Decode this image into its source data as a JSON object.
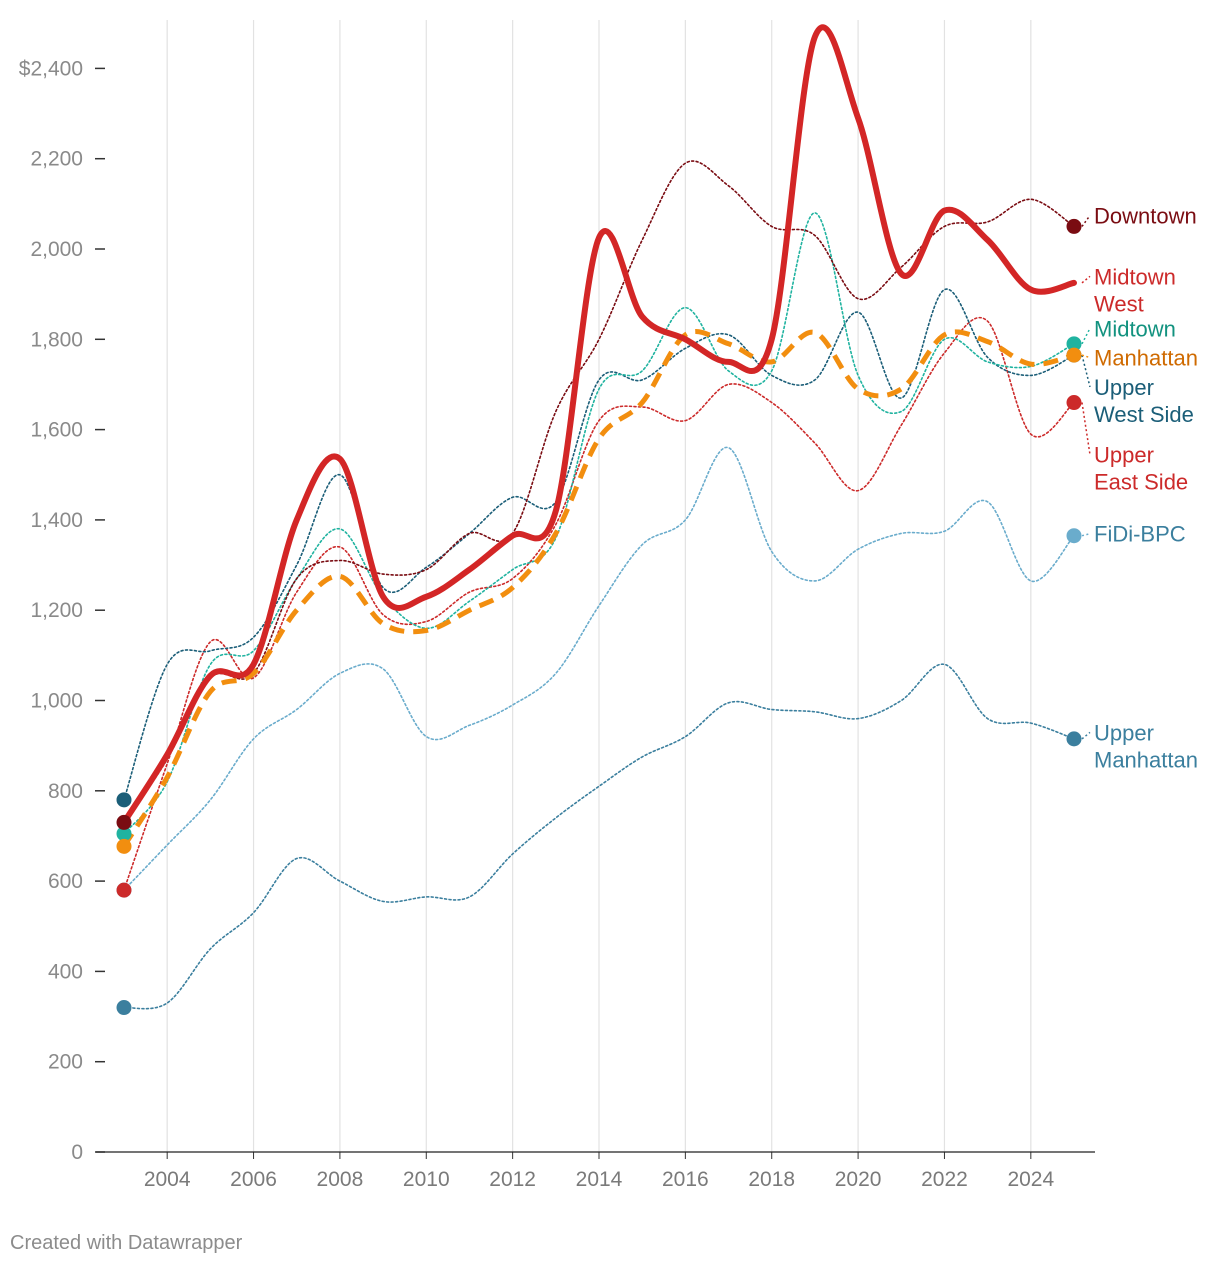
{
  "credit": "Created with Datawrapper",
  "chart_data": {
    "type": "line",
    "title": "",
    "xlabel": "",
    "ylabel": "",
    "xlim": [
      2002.4,
      2025.5
    ],
    "ylim": [
      0,
      2480
    ],
    "grid": "vertical",
    "x_ticks": [
      2004,
      2006,
      2008,
      2010,
      2012,
      2014,
      2016,
      2018,
      2020,
      2022,
      2024
    ],
    "y_ticks": [
      {
        "value": 0,
        "label": "0"
      },
      {
        "value": 200,
        "label": "200"
      },
      {
        "value": 400,
        "label": "400"
      },
      {
        "value": 600,
        "label": "600"
      },
      {
        "value": 800,
        "label": "800"
      },
      {
        "value": 1000,
        "label": "1,000"
      },
      {
        "value": 1200,
        "label": "1,200"
      },
      {
        "value": 1400,
        "label": "1,400"
      },
      {
        "value": 1600,
        "label": "1,600"
      },
      {
        "value": 1800,
        "label": "1,800"
      },
      {
        "value": 2000,
        "label": "2,000"
      },
      {
        "value": 2200,
        "label": "2,200"
      },
      {
        "value": 2400,
        "label": "$2,400"
      }
    ],
    "series": [
      {
        "name": "Upper Manhattan",
        "label_lines": [
          "Upper",
          "Manhattan"
        ],
        "color": "#3b7f9e",
        "style": "dotted",
        "width": 1.6,
        "label_color": "#3b7f9e",
        "label_value": 925,
        "x": [
          2003,
          2004,
          2005,
          2006,
          2007,
          2008,
          2009,
          2010,
          2011,
          2012,
          2013,
          2014,
          2015,
          2016,
          2017,
          2018,
          2019,
          2020,
          2021,
          2022,
          2023,
          2024,
          2025
        ],
        "y": [
          320,
          330,
          450,
          530,
          650,
          600,
          555,
          565,
          565,
          660,
          740,
          810,
          875,
          920,
          995,
          980,
          975,
          960,
          1000,
          1080,
          960,
          950,
          915
        ]
      },
      {
        "name": "FiDi-BPC",
        "label_lines": [
          "FiDi-BPC"
        ],
        "color": "#6aaccc",
        "style": "dotted",
        "width": 1.6,
        "label_color": "#3b7f9e",
        "label_value": 1365,
        "x": [
          2003,
          2004,
          2005,
          2006,
          2007,
          2008,
          2009,
          2010,
          2011,
          2012,
          2013,
          2014,
          2015,
          2016,
          2017,
          2018,
          2019,
          2020,
          2021,
          2022,
          2023,
          2024,
          2025
        ],
        "y": [
          580,
          680,
          780,
          915,
          980,
          1060,
          1070,
          920,
          945,
          990,
          1060,
          1210,
          1345,
          1400,
          1560,
          1330,
          1265,
          1335,
          1370,
          1375,
          1440,
          1265,
          1365
        ]
      },
      {
        "name": "Upper East Side",
        "label_lines": [
          "Upper",
          "East Side"
        ],
        "color": "#cc2a2a",
        "style": "dotted",
        "width": 1.6,
        "label_color": "#cc2a2a",
        "label_value": 1540,
        "x": [
          2003,
          2004,
          2005,
          2006,
          2007,
          2008,
          2009,
          2010,
          2011,
          2012,
          2013,
          2014,
          2015,
          2016,
          2017,
          2018,
          2019,
          2020,
          2021,
          2022,
          2023,
          2024,
          2025
        ],
        "y": [
          580,
          860,
          1130,
          1050,
          1240,
          1340,
          1190,
          1175,
          1240,
          1270,
          1390,
          1620,
          1650,
          1620,
          1700,
          1660,
          1570,
          1465,
          1610,
          1770,
          1840,
          1590,
          1660
        ]
      },
      {
        "name": "Upper West Side",
        "label_lines": [
          "Upper",
          "West Side"
        ],
        "color": "#1b5e78",
        "style": "dotted",
        "width": 1.6,
        "label_color": "#1b5e78",
        "label_value": 1690,
        "x": [
          2003,
          2004,
          2005,
          2006,
          2007,
          2008,
          2009,
          2010,
          2011,
          2012,
          2013,
          2014,
          2015,
          2016,
          2017,
          2018,
          2019,
          2020,
          2021,
          2022,
          2023,
          2024,
          2025
        ],
        "y": [
          780,
          1080,
          1110,
          1140,
          1300,
          1500,
          1250,
          1295,
          1370,
          1450,
          1440,
          1710,
          1710,
          1780,
          1810,
          1720,
          1710,
          1860,
          1670,
          1910,
          1760,
          1720,
          1765
        ]
      },
      {
        "name": "Midtown",
        "label_lines": [
          "Midtown"
        ],
        "color": "#20b3a0",
        "style": "dotted",
        "width": 1.6,
        "label_color": "#12927f",
        "label_value": 1820,
        "x": [
          2003,
          2004,
          2005,
          2006,
          2007,
          2008,
          2009,
          2010,
          2011,
          2012,
          2013,
          2014,
          2015,
          2016,
          2017,
          2018,
          2019,
          2020,
          2021,
          2022,
          2023,
          2024,
          2025
        ],
        "y": [
          705,
          820,
          1080,
          1110,
          1270,
          1380,
          1230,
          1160,
          1220,
          1290,
          1360,
          1690,
          1730,
          1870,
          1730,
          1730,
          2080,
          1720,
          1640,
          1800,
          1750,
          1740,
          1790
        ]
      },
      {
        "name": "Downtown",
        "label_lines": [
          "Downtown"
        ],
        "color": "#7a0c12",
        "style": "dotted",
        "width": 1.6,
        "label_color": "#7a0c12",
        "label_value": 2070,
        "x": [
          2003,
          2004,
          2005,
          2006,
          2007,
          2008,
          2009,
          2010,
          2011,
          2012,
          2013,
          2014,
          2015,
          2016,
          2017,
          2018,
          2019,
          2020,
          2021,
          2022,
          2023,
          2024,
          2025
        ],
        "y": [
          730,
          870,
          1050,
          1060,
          1270,
          1310,
          1280,
          1290,
          1370,
          1370,
          1640,
          1800,
          2020,
          2190,
          2140,
          2050,
          2030,
          1890,
          1960,
          2050,
          2060,
          2110,
          2050
        ]
      },
      {
        "name": "Manhattan",
        "label_lines": [
          "Manhattan"
        ],
        "color": "#f28e0f",
        "style": "dashed",
        "width": 5,
        "label_color": "#cf6a00",
        "label_value": 1755,
        "x": [
          2003,
          2004,
          2005,
          2006,
          2007,
          2008,
          2009,
          2010,
          2011,
          2012,
          2013,
          2014,
          2015,
          2016,
          2017,
          2018,
          2019,
          2020,
          2021,
          2022,
          2023,
          2024,
          2025
        ],
        "y": [
          677,
          830,
          1020,
          1060,
          1200,
          1275,
          1170,
          1155,
          1200,
          1250,
          1370,
          1580,
          1660,
          1810,
          1790,
          1750,
          1815,
          1690,
          1690,
          1810,
          1795,
          1745,
          1765
        ]
      },
      {
        "name": "Midtown West",
        "label_lines": [
          "Midtown",
          "West"
        ],
        "color": "#d32626",
        "style": "solid",
        "width": 6,
        "label_color": "#cc2a2a",
        "label_value": 1935,
        "x": [
          2003,
          2004,
          2005,
          2006,
          2007,
          2008,
          2009,
          2010,
          2011,
          2012,
          2013,
          2014,
          2015,
          2016,
          2017,
          2018,
          2019,
          2020,
          2021,
          2022,
          2023,
          2024,
          2025
        ],
        "y": [
          730,
          880,
          1055,
          1080,
          1400,
          1535,
          1230,
          1230,
          1290,
          1365,
          1420,
          2025,
          1850,
          1800,
          1750,
          1800,
          2470,
          2290,
          1945,
          2085,
          2020,
          1910,
          1925
        ]
      }
    ]
  }
}
